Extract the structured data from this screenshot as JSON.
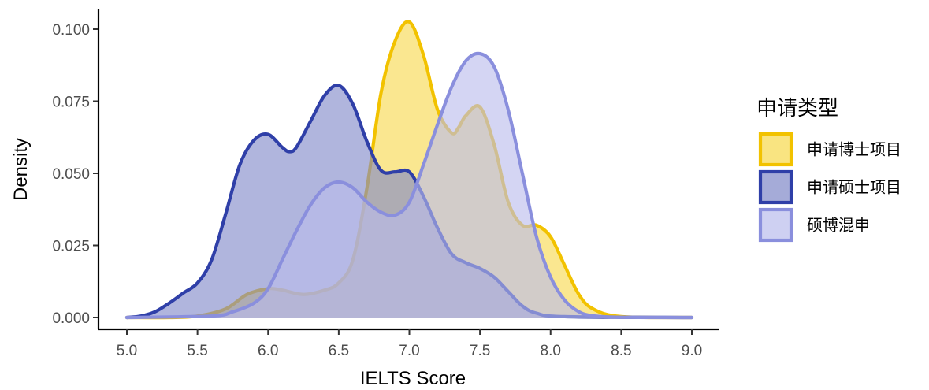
{
  "chart_data": {
    "type": "area",
    "title": "",
    "xlabel": "IELTS Score",
    "ylabel": "Density",
    "xlim": [
      5.0,
      9.0
    ],
    "ylim": [
      0.0,
      0.1
    ],
    "xticks": [
      "5.0",
      "5.5",
      "6.0",
      "6.5",
      "7.0",
      "7.5",
      "8.0",
      "8.5",
      "9.0"
    ],
    "yticks": [
      "0.000",
      "0.025",
      "0.050",
      "0.075",
      "0.100"
    ],
    "legend": {
      "title": "申请类型",
      "position": "right"
    },
    "series": [
      {
        "name": "申请博士项目",
        "color": "#F2C200",
        "fill": "#F7D94C",
        "x": [
          5.0,
          5.3,
          5.5,
          5.7,
          5.85,
          6.0,
          6.1,
          6.25,
          6.4,
          6.5,
          6.6,
          6.7,
          6.8,
          6.9,
          7.0,
          7.1,
          7.2,
          7.3,
          7.35,
          7.4,
          7.5,
          7.6,
          7.7,
          7.8,
          7.9,
          8.0,
          8.1,
          8.2,
          8.3,
          8.5,
          9.0
        ],
        "values": [
          0.0,
          0.0,
          0.0005,
          0.003,
          0.008,
          0.01,
          0.0095,
          0.008,
          0.0095,
          0.012,
          0.02,
          0.045,
          0.078,
          0.096,
          0.1025,
          0.091,
          0.072,
          0.064,
          0.066,
          0.07,
          0.073,
          0.06,
          0.04,
          0.032,
          0.032,
          0.028,
          0.018,
          0.008,
          0.003,
          0.0003,
          0.0
        ]
      },
      {
        "name": "申请硕士项目",
        "color": "#2F3FA8",
        "fill": "#7F88C8",
        "x": [
          5.0,
          5.1,
          5.2,
          5.3,
          5.4,
          5.5,
          5.6,
          5.7,
          5.8,
          5.9,
          6.0,
          6.1,
          6.15,
          6.2,
          6.3,
          6.4,
          6.5,
          6.6,
          6.7,
          6.8,
          6.9,
          7.0,
          7.1,
          7.2,
          7.3,
          7.4,
          7.5,
          7.6,
          7.7,
          7.8,
          7.9,
          8.1,
          9.0
        ],
        "values": [
          0.0,
          0.0005,
          0.002,
          0.005,
          0.0085,
          0.012,
          0.02,
          0.036,
          0.053,
          0.0615,
          0.0635,
          0.059,
          0.0575,
          0.059,
          0.068,
          0.077,
          0.0805,
          0.074,
          0.061,
          0.051,
          0.0505,
          0.0505,
          0.042,
          0.031,
          0.022,
          0.019,
          0.017,
          0.014,
          0.009,
          0.004,
          0.0015,
          0.0003,
          0.0
        ]
      },
      {
        "name": "硕博混申",
        "color": "#8A8FDD",
        "fill": "#B9BCEC",
        "x": [
          5.0,
          5.6,
          5.75,
          5.9,
          6.0,
          6.1,
          6.2,
          6.3,
          6.4,
          6.5,
          6.6,
          6.7,
          6.8,
          6.9,
          7.0,
          7.1,
          7.2,
          7.3,
          7.4,
          7.5,
          7.6,
          7.7,
          7.8,
          7.9,
          8.0,
          8.1,
          8.2,
          8.3,
          8.5,
          9.0
        ],
        "values": [
          0.0,
          0.0005,
          0.002,
          0.005,
          0.01,
          0.02,
          0.03,
          0.039,
          0.045,
          0.047,
          0.045,
          0.04,
          0.0365,
          0.0355,
          0.04,
          0.053,
          0.067,
          0.08,
          0.089,
          0.0915,
          0.087,
          0.072,
          0.05,
          0.028,
          0.014,
          0.006,
          0.002,
          0.0006,
          0.0001,
          0.0
        ]
      }
    ]
  }
}
